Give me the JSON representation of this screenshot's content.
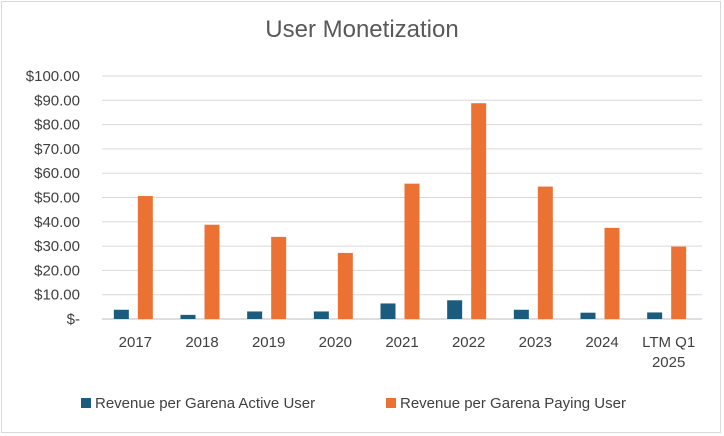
{
  "chart_data": {
    "type": "bar",
    "title": "User Monetization",
    "categories": [
      "2017",
      "2018",
      "2019",
      "2020",
      "2021",
      "2022",
      "2023",
      "2024",
      "LTM Q1 2025"
    ],
    "series": [
      {
        "name": "Revenue per Garena Active User",
        "color": "#1a5b7e",
        "values": [
          3.8,
          1.7,
          3.1,
          3.1,
          6.4,
          7.7,
          3.8,
          2.6,
          2.7
        ]
      },
      {
        "name": "Revenue per Garena Paying User",
        "color": "#ec7234",
        "values": [
          50.6,
          38.8,
          33.8,
          27.2,
          55.7,
          88.8,
          54.5,
          37.5,
          29.8
        ]
      }
    ],
    "ylim": [
      0,
      100
    ],
    "yticks": [
      "$-",
      "$10.00",
      "$20.00",
      "$30.00",
      "$40.00",
      "$50.00",
      "$60.00",
      "$70.00",
      "$80.00",
      "$90.00",
      "$100.00"
    ],
    "xlabel": "",
    "ylabel": "",
    "grid": true,
    "legend_position": "bottom"
  }
}
